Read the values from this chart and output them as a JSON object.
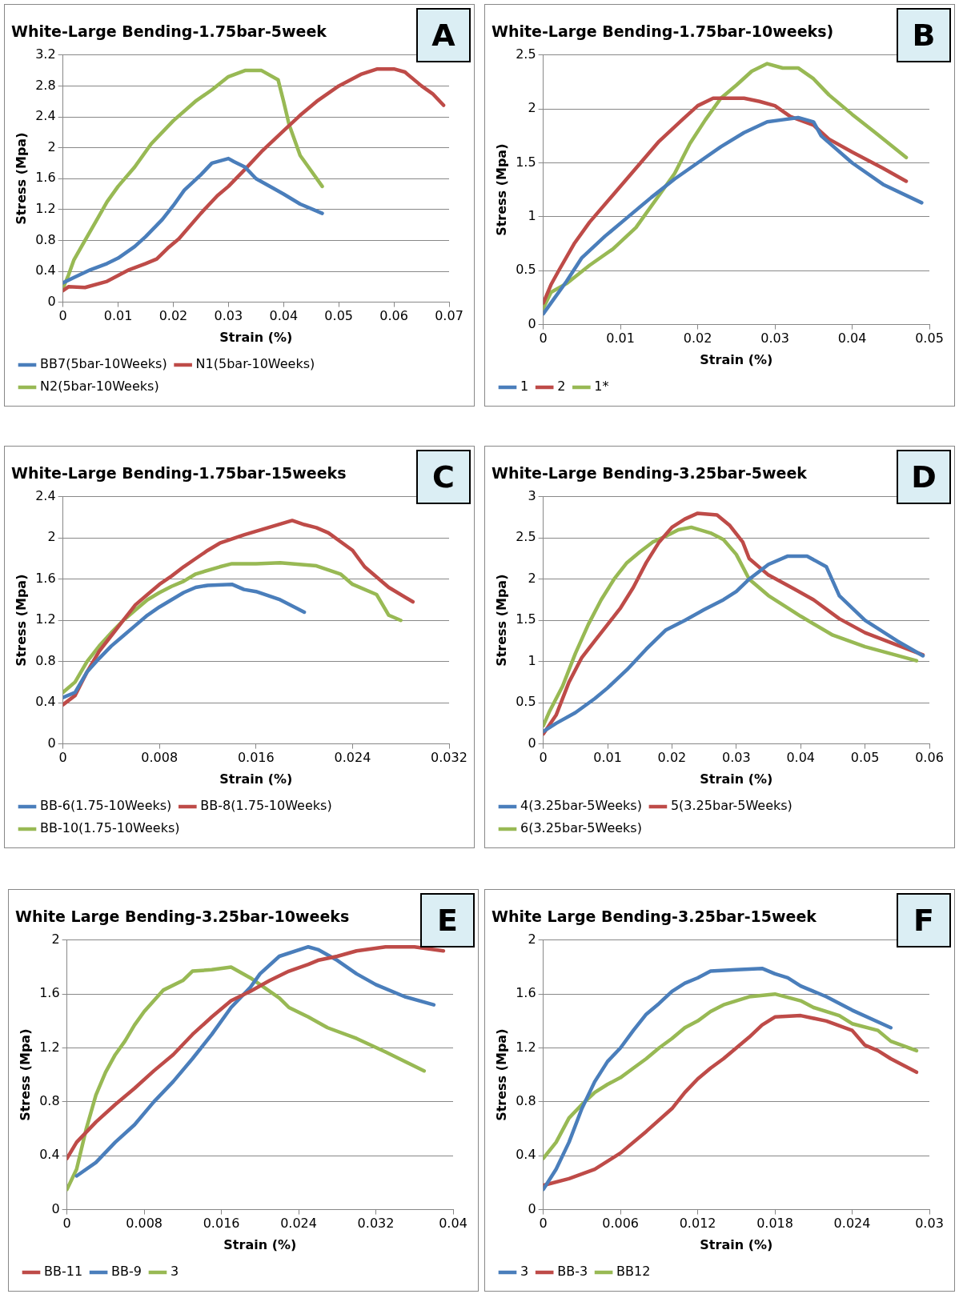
{
  "chart_data": [
    {
      "type": "line",
      "title": "White-Large Bending-1.75bar-5week",
      "xlabel": "Strain (%)",
      "ylabel": "Stress (Mpa)",
      "annotations": [
        "A"
      ],
      "xlim": [
        0,
        0.07
      ],
      "xticks": [
        0,
        0.01,
        0.02,
        0.03,
        0.04,
        0.05,
        0.06,
        0.07
      ],
      "ylim": [
        0,
        3.2
      ],
      "yticks": [
        0,
        0.4,
        0.8,
        1.2,
        1.6,
        2,
        2.4,
        2.8,
        3.2
      ],
      "grid": "y",
      "legend": "bottom",
      "marker": "none",
      "line_style": "solid",
      "series": [
        {
          "name": "BB7(5bar-10Weeks)",
          "color": "#4a7ebb",
          "x": [
            0,
            0.002,
            0.005,
            0.008,
            0.01,
            0.013,
            0.015,
            0.018,
            0.02,
            0.022,
            0.025,
            0.027,
            0.03,
            0.031,
            0.033,
            0.035,
            0.038,
            0.04,
            0.043,
            0.047
          ],
          "values": [
            0.25,
            0.32,
            0.42,
            0.5,
            0.57,
            0.72,
            0.85,
            1.07,
            1.25,
            1.45,
            1.65,
            1.8,
            1.86,
            1.82,
            1.75,
            1.6,
            1.48,
            1.4,
            1.27,
            1.15
          ]
        },
        {
          "name": "N1(5bar-10Weeks)",
          "color": "#be4b48",
          "x": [
            0,
            0.001,
            0.004,
            0.008,
            0.012,
            0.015,
            0.017,
            0.019,
            0.021,
            0.025,
            0.028,
            0.03,
            0.033,
            0.036,
            0.04,
            0.043,
            0.046,
            0.05,
            0.054,
            0.057,
            0.06,
            0.062,
            0.065,
            0.067,
            0.069
          ],
          "values": [
            0.15,
            0.2,
            0.19,
            0.27,
            0.42,
            0.5,
            0.56,
            0.7,
            0.82,
            1.15,
            1.38,
            1.5,
            1.72,
            1.95,
            2.22,
            2.42,
            2.6,
            2.8,
            2.95,
            3.02,
            3.02,
            2.98,
            2.8,
            2.7,
            2.55
          ]
        },
        {
          "name": "N2(5bar-10Weeks)",
          "color": "#98b954",
          "x": [
            0,
            0.001,
            0.002,
            0.004,
            0.006,
            0.008,
            0.01,
            0.013,
            0.016,
            0.02,
            0.024,
            0.027,
            0.03,
            0.033,
            0.036,
            0.039,
            0.04,
            0.041,
            0.043,
            0.045,
            0.047
          ],
          "values": [
            0.18,
            0.35,
            0.55,
            0.8,
            1.05,
            1.3,
            1.5,
            1.75,
            2.05,
            2.35,
            2.6,
            2.75,
            2.92,
            3.0,
            3.0,
            2.88,
            2.6,
            2.3,
            1.9,
            1.7,
            1.5
          ]
        }
      ]
    },
    {
      "type": "line",
      "title": "White-Large Bending-1.75bar-10weeks)",
      "xlabel": "Strain (%)",
      "ylabel": "Stress (Mpa)",
      "annotations": [
        "B"
      ],
      "xlim": [
        0,
        0.05
      ],
      "xticks": [
        0,
        0.01,
        0.02,
        0.03,
        0.04,
        0.05
      ],
      "ylim": [
        0,
        2.5
      ],
      "yticks": [
        0,
        0.5,
        1,
        1.5,
        2,
        2.5
      ],
      "grid": "y",
      "legend": "bottom",
      "marker": "none",
      "line_style": "solid",
      "series": [
        {
          "name": "1",
          "color": "#4a7ebb",
          "x": [
            0,
            0.001,
            0.003,
            0.005,
            0.008,
            0.011,
            0.014,
            0.017,
            0.02,
            0.023,
            0.026,
            0.029,
            0.031,
            0.033,
            0.035,
            0.036,
            0.04,
            0.044,
            0.049
          ],
          "values": [
            0.1,
            0.2,
            0.4,
            0.62,
            0.82,
            1.0,
            1.18,
            1.35,
            1.5,
            1.65,
            1.78,
            1.88,
            1.9,
            1.92,
            1.88,
            1.75,
            1.5,
            1.3,
            1.13
          ]
        },
        {
          "name": "2",
          "color": "#be4b48",
          "x": [
            0,
            0.001,
            0.002,
            0.004,
            0.006,
            0.009,
            0.012,
            0.015,
            0.018,
            0.02,
            0.022,
            0.024,
            0.026,
            0.028,
            0.03,
            0.032,
            0.035,
            0.037,
            0.04,
            0.044,
            0.047
          ],
          "values": [
            0.2,
            0.37,
            0.5,
            0.75,
            0.95,
            1.2,
            1.45,
            1.7,
            1.9,
            2.03,
            2.1,
            2.1,
            2.1,
            2.07,
            2.03,
            1.93,
            1.85,
            1.72,
            1.6,
            1.45,
            1.33
          ]
        },
        {
          "name": "1*",
          "color": "#98b954",
          "x": [
            0,
            0.001,
            0.003,
            0.006,
            0.009,
            0.012,
            0.015,
            0.017,
            0.019,
            0.021,
            0.023,
            0.025,
            0.027,
            0.029,
            0.031,
            0.033,
            0.035,
            0.037,
            0.04,
            0.043,
            0.047
          ],
          "values": [
            0.15,
            0.3,
            0.38,
            0.55,
            0.7,
            0.9,
            1.2,
            1.4,
            1.68,
            1.9,
            2.1,
            2.22,
            2.35,
            2.42,
            2.38,
            2.38,
            2.28,
            2.13,
            1.95,
            1.78,
            1.55
          ]
        }
      ]
    },
    {
      "type": "line",
      "title": "White-Large Bending-1.75bar-15weeks",
      "xlabel": "Strain (%)",
      "ylabel": "Stress (Mpa)",
      "annotations": [
        "C"
      ],
      "xlim": [
        0,
        0.032
      ],
      "xticks": [
        0,
        0.008,
        0.016,
        0.024,
        0.032
      ],
      "ylim": [
        0,
        2.4
      ],
      "yticks": [
        0,
        0.4,
        0.8,
        1.2,
        1.6,
        2,
        2.4
      ],
      "grid": "y",
      "legend": "bottom",
      "marker": "none",
      "line_style": "solid",
      "series": [
        {
          "name": "BB-6(1.75-10Weeks)",
          "color": "#4a7ebb",
          "x": [
            0,
            0.001,
            0.002,
            0.003,
            0.004,
            0.005,
            0.006,
            0.007,
            0.008,
            0.009,
            0.01,
            0.011,
            0.012,
            0.014,
            0.015,
            0.016,
            0.018,
            0.02
          ],
          "values": [
            0.45,
            0.5,
            0.7,
            0.83,
            0.95,
            1.05,
            1.15,
            1.25,
            1.33,
            1.4,
            1.47,
            1.52,
            1.54,
            1.55,
            1.5,
            1.48,
            1.4,
            1.28
          ]
        },
        {
          "name": "BB-8(1.75-10Weeks)",
          "color": "#be4b48",
          "x": [
            0,
            0.001,
            0.002,
            0.003,
            0.004,
            0.005,
            0.006,
            0.007,
            0.008,
            0.009,
            0.01,
            0.011,
            0.012,
            0.013,
            0.015,
            0.017,
            0.019,
            0.02,
            0.021,
            0.022,
            0.024,
            0.025,
            0.027,
            0.029
          ],
          "values": [
            0.38,
            0.47,
            0.7,
            0.9,
            1.05,
            1.2,
            1.35,
            1.45,
            1.55,
            1.63,
            1.72,
            1.8,
            1.88,
            1.95,
            2.03,
            2.1,
            2.17,
            2.13,
            2.1,
            2.05,
            1.88,
            1.72,
            1.52,
            1.38
          ]
        },
        {
          "name": "BB-10(1.75-10Weeks)",
          "color": "#98b954",
          "x": [
            0,
            0.001,
            0.002,
            0.003,
            0.004,
            0.005,
            0.006,
            0.007,
            0.008,
            0.009,
            0.01,
            0.011,
            0.013,
            0.014,
            0.016,
            0.018,
            0.021,
            0.023,
            0.024,
            0.026,
            0.027,
            0.028
          ],
          "values": [
            0.5,
            0.6,
            0.8,
            0.95,
            1.08,
            1.2,
            1.3,
            1.4,
            1.47,
            1.53,
            1.58,
            1.65,
            1.72,
            1.75,
            1.75,
            1.76,
            1.73,
            1.65,
            1.55,
            1.45,
            1.25,
            1.2
          ]
        }
      ]
    },
    {
      "type": "line",
      "title": "White-Large Bending-3.25bar-5week",
      "xlabel": "Strain (%)",
      "ylabel": "Stress (Mpa)",
      "annotations": [
        "D"
      ],
      "xlim": [
        0,
        0.06
      ],
      "xticks": [
        0,
        0.01,
        0.02,
        0.03,
        0.04,
        0.05,
        0.06
      ],
      "ylim": [
        0,
        3
      ],
      "yticks": [
        0,
        0.5,
        1,
        1.5,
        2,
        2.5,
        3
      ],
      "grid": "y",
      "legend": "bottom",
      "marker": "none",
      "line_style": "solid",
      "series": [
        {
          "name": "4(3.25bar-5Weeks)",
          "color": "#4a7ebb",
          "x": [
            0,
            0.002,
            0.005,
            0.008,
            0.01,
            0.013,
            0.016,
            0.019,
            0.022,
            0.025,
            0.028,
            0.03,
            0.032,
            0.035,
            0.038,
            0.041,
            0.044,
            0.046,
            0.05,
            0.055,
            0.059
          ],
          "values": [
            0.15,
            0.25,
            0.38,
            0.55,
            0.68,
            0.9,
            1.15,
            1.38,
            1.5,
            1.63,
            1.75,
            1.85,
            2.0,
            2.18,
            2.28,
            2.28,
            2.15,
            1.8,
            1.5,
            1.25,
            1.07
          ]
        },
        {
          "name": "5(3.25bar-5Weeks)",
          "color": "#be4b48",
          "x": [
            0,
            0.002,
            0.004,
            0.006,
            0.008,
            0.01,
            0.012,
            0.014,
            0.016,
            0.018,
            0.02,
            0.022,
            0.024,
            0.027,
            0.029,
            0.031,
            0.032,
            0.035,
            0.039,
            0.042,
            0.046,
            0.05,
            0.055,
            0.059
          ],
          "values": [
            0.12,
            0.35,
            0.75,
            1.05,
            1.25,
            1.45,
            1.65,
            1.9,
            2.2,
            2.45,
            2.63,
            2.73,
            2.8,
            2.78,
            2.65,
            2.45,
            2.25,
            2.05,
            1.88,
            1.75,
            1.52,
            1.35,
            1.2,
            1.08
          ]
        },
        {
          "name": "6(3.25bar-5Weeks)",
          "color": "#98b954",
          "x": [
            0,
            0.001,
            0.003,
            0.005,
            0.007,
            0.009,
            0.011,
            0.013,
            0.015,
            0.017,
            0.019,
            0.021,
            0.023,
            0.026,
            0.028,
            0.03,
            0.032,
            0.035,
            0.04,
            0.045,
            0.05,
            0.058
          ],
          "values": [
            0.22,
            0.4,
            0.7,
            1.1,
            1.45,
            1.75,
            2.0,
            2.2,
            2.33,
            2.45,
            2.52,
            2.6,
            2.63,
            2.56,
            2.48,
            2.3,
            2.0,
            1.8,
            1.55,
            1.32,
            1.18,
            1.01
          ]
        }
      ]
    },
    {
      "type": "line",
      "title": "White Large Bending-3.25bar-10weeks",
      "xlabel": "Strain (%)",
      "ylabel": "Stress (Mpa)",
      "annotations": [
        "E"
      ],
      "xlim": [
        0,
        0.04
      ],
      "xticks": [
        0,
        0.008,
        0.016,
        0.024,
        0.032,
        0.04
      ],
      "ylim": [
        0,
        2
      ],
      "yticks": [
        0,
        0.4,
        0.8,
        1.2,
        1.6,
        2
      ],
      "grid": "y",
      "legend": "bottom",
      "marker": "none",
      "line_style": "solid",
      "series": [
        {
          "name": "BB-11",
          "color": "#be4b48",
          "x": [
            0,
            0.001,
            0.003,
            0.005,
            0.007,
            0.009,
            0.011,
            0.013,
            0.015,
            0.017,
            0.019,
            0.021,
            0.023,
            0.025,
            0.026,
            0.028,
            0.03,
            0.033,
            0.036,
            0.039
          ],
          "values": [
            0.38,
            0.5,
            0.65,
            0.78,
            0.9,
            1.03,
            1.15,
            1.3,
            1.43,
            1.55,
            1.62,
            1.7,
            1.77,
            1.82,
            1.85,
            1.88,
            1.92,
            1.95,
            1.95,
            1.92
          ]
        },
        {
          "name": "BB-9",
          "color": "#4a7ebb",
          "x": [
            0.001,
            0.003,
            0.005,
            0.007,
            0.009,
            0.011,
            0.013,
            0.015,
            0.017,
            0.019,
            0.02,
            0.022,
            0.025,
            0.026,
            0.028,
            0.03,
            0.032,
            0.035,
            0.038
          ],
          "values": [
            0.25,
            0.35,
            0.5,
            0.63,
            0.8,
            0.95,
            1.12,
            1.3,
            1.5,
            1.65,
            1.75,
            1.88,
            1.95,
            1.93,
            1.85,
            1.75,
            1.67,
            1.58,
            1.52
          ]
        },
        {
          "name": "3",
          "color": "#98b954",
          "x": [
            0,
            0.001,
            0.002,
            0.003,
            0.004,
            0.005,
            0.006,
            0.007,
            0.008,
            0.009,
            0.01,
            0.012,
            0.013,
            0.015,
            0.017,
            0.019,
            0.022,
            0.023,
            0.025,
            0.027,
            0.03,
            0.033,
            0.037
          ],
          "values": [
            0.15,
            0.3,
            0.6,
            0.85,
            1.02,
            1.15,
            1.25,
            1.37,
            1.47,
            1.55,
            1.63,
            1.7,
            1.77,
            1.78,
            1.8,
            1.72,
            1.57,
            1.5,
            1.43,
            1.35,
            1.27,
            1.17,
            1.03
          ]
        }
      ]
    },
    {
      "type": "line",
      "title": "White Large Bending-3.25bar-15week",
      "xlabel": "Strain (%)",
      "ylabel": "Stress (Mpa)",
      "annotations": [
        "F"
      ],
      "xlim": [
        0,
        0.03
      ],
      "xticks": [
        0,
        0.006,
        0.012,
        0.018,
        0.024,
        0.03
      ],
      "ylim": [
        0,
        2
      ],
      "yticks": [
        0,
        0.4,
        0.8,
        1.2,
        1.6,
        2
      ],
      "grid": "y",
      "legend": "bottom",
      "marker": "none",
      "line_style": "solid",
      "series": [
        {
          "name": "3",
          "color": "#4a7ebb",
          "x": [
            0,
            0.001,
            0.002,
            0.003,
            0.004,
            0.005,
            0.006,
            0.007,
            0.008,
            0.009,
            0.01,
            0.011,
            0.012,
            0.013,
            0.015,
            0.017,
            0.018,
            0.019,
            0.02,
            0.022,
            0.024,
            0.027
          ],
          "values": [
            0.15,
            0.3,
            0.5,
            0.75,
            0.95,
            1.1,
            1.2,
            1.33,
            1.45,
            1.53,
            1.62,
            1.68,
            1.72,
            1.77,
            1.78,
            1.79,
            1.75,
            1.72,
            1.66,
            1.58,
            1.48,
            1.35
          ]
        },
        {
          "name": "BB-3",
          "color": "#be4b48",
          "x": [
            0,
            0.002,
            0.004,
            0.006,
            0.008,
            0.01,
            0.011,
            0.012,
            0.013,
            0.014,
            0.015,
            0.016,
            0.017,
            0.018,
            0.02,
            0.022,
            0.024,
            0.025,
            0.026,
            0.027,
            0.029
          ],
          "values": [
            0.18,
            0.23,
            0.3,
            0.42,
            0.58,
            0.75,
            0.87,
            0.97,
            1.05,
            1.12,
            1.2,
            1.28,
            1.37,
            1.43,
            1.44,
            1.4,
            1.33,
            1.22,
            1.18,
            1.12,
            1.02
          ]
        },
        {
          "name": "BB12",
          "color": "#98b954",
          "x": [
            0,
            0.001,
            0.002,
            0.003,
            0.004,
            0.005,
            0.006,
            0.007,
            0.008,
            0.009,
            0.01,
            0.011,
            0.012,
            0.013,
            0.014,
            0.016,
            0.018,
            0.02,
            0.021,
            0.023,
            0.024,
            0.026,
            0.027,
            0.029
          ],
          "values": [
            0.38,
            0.5,
            0.68,
            0.78,
            0.87,
            0.93,
            0.98,
            1.05,
            1.12,
            1.2,
            1.27,
            1.35,
            1.4,
            1.47,
            1.52,
            1.58,
            1.6,
            1.55,
            1.5,
            1.44,
            1.38,
            1.33,
            1.25,
            1.18
          ]
        }
      ]
    }
  ]
}
